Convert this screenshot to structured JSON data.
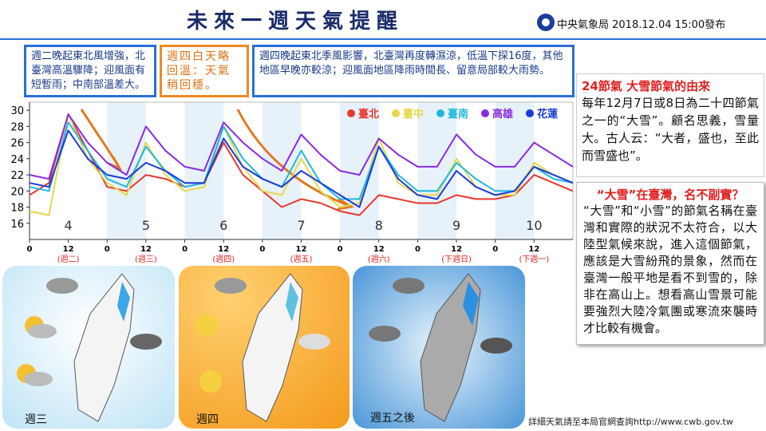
{
  "header": {
    "title": "未來一週天氣提醒",
    "issuer": "中央氣象局 2018.12.04 15:00發布"
  },
  "notes": [
    "週二晚起東北風增強，北臺灣高溫驟降；迎風面有短暫雨；中南部溫差大。",
    "週四白天略回溫：天氣稍回穩。",
    "週四晚起東北季風影響，北臺灣再度轉濕涼，低溫下探16度，其他地區早晚亦較涼；迎風面地區降雨時間長、留意局部較大雨勢。"
  ],
  "chart_data": {
    "type": "line",
    "x": [
      0,
      6,
      12,
      18,
      24,
      30,
      36,
      42,
      48,
      54,
      60,
      66,
      72,
      78,
      84,
      90,
      96,
      102,
      108,
      114,
      120,
      126,
      132,
      138,
      144,
      150,
      156,
      162,
      168
    ],
    "series": [
      {
        "name": "臺北",
        "color": "#e8382f",
        "values": [
          19.5,
          21,
          29.5,
          25,
          20.5,
          20,
          22,
          21.5,
          20.5,
          21,
          26,
          22,
          20,
          18,
          19,
          18.5,
          17.5,
          17,
          19.5,
          19,
          18.5,
          18.5,
          19.5,
          19,
          19,
          19.5,
          22,
          21,
          20
        ]
      },
      {
        "name": "臺中",
        "color": "#e6d84a",
        "values": [
          17.5,
          17,
          29.5,
          24,
          21,
          19.5,
          26,
          22,
          20,
          20.5,
          28,
          23,
          20,
          19.5,
          24,
          20,
          18,
          18.5,
          26.5,
          21,
          19.5,
          19.5,
          24,
          20.5,
          19.5,
          19.5,
          23.5,
          22,
          21
        ]
      },
      {
        "name": "臺南",
        "color": "#20b8e0",
        "values": [
          20.5,
          20,
          28.5,
          25,
          21.5,
          20.5,
          25.5,
          22.5,
          20.5,
          21,
          28,
          24,
          21.5,
          20.5,
          25,
          21,
          19,
          19,
          25.5,
          22,
          20,
          20,
          23.5,
          21.5,
          20,
          20,
          23,
          21.5,
          21
        ]
      },
      {
        "name": "高雄",
        "color": "#8a2be2",
        "values": [
          22,
          21.5,
          29.5,
          26,
          23.5,
          22,
          28,
          25,
          23,
          22.5,
          28.5,
          26,
          24,
          22.5,
          27,
          24.5,
          22.5,
          22,
          26.5,
          24.5,
          23,
          23,
          27,
          24.5,
          23,
          23,
          26,
          24.5,
          23
        ]
      },
      {
        "name": "花蓮",
        "color": "#1c3cd8",
        "values": [
          21,
          20.5,
          27.5,
          24,
          22,
          21.5,
          23.5,
          22.5,
          21,
          21,
          26.5,
          23,
          21.5,
          20.5,
          22.5,
          21,
          19.5,
          18,
          25.5,
          21.5,
          19.5,
          19,
          22.5,
          20.5,
          19.5,
          20,
          23,
          22,
          21
        ]
      }
    ],
    "xlim": [
      0,
      168
    ],
    "xticks": [
      0,
      12,
      {
        "value": 24,
        "label": "0"
      },
      {
        "value": 36,
        "label": "12"
      },
      {
        "value": 48,
        "label": "0"
      },
      {
        "value": 60,
        "label": "12"
      },
      {
        "value": 72,
        "label": "0"
      },
      {
        "value": 84,
        "label": "12"
      },
      {
        "value": 96,
        "label": "0"
      },
      {
        "value": 108,
        "label": "12"
      },
      {
        "value": 120,
        "label": "0"
      },
      {
        "value": 132,
        "label": "12"
      },
      {
        "value": 144,
        "label": "0"
      },
      {
        "value": 156,
        "label": "12"
      }
    ],
    "ylim": [
      14,
      31
    ],
    "yticks": [
      16,
      18,
      20,
      22,
      24,
      26,
      28,
      30
    ],
    "day_labels": [
      "4",
      "5",
      "6",
      "7",
      "8",
      "9",
      "10"
    ],
    "weekday_labels": [
      "(週二)",
      "(週三)",
      "(週四)",
      "(週五)",
      "(週六)",
      "(下週日)",
      "(下週一)"
    ]
  },
  "sidebar": [
    {
      "title": "24節氣 大雪節氣的由來",
      "body": "每年12月7日或8日為二十四節氣之一的“大雪”。顧名思義，雪量大。古人云：“大者，盛也，至此而雪盛也”。"
    },
    {
      "title": "“大雪”在臺灣，名不副實？",
      "body": "“大雪”和“小雪”的節氣名稱在臺灣和實際的狀況不太符合，以大陸型氣候來說，進入這個節氣，應該是大雪紛飛的景象，然而在臺灣一般平地是看不到雪的，除非在高山上。想看高山雪景可能要強烈大陸冷氣團或寒流來襲時才比較有機會。"
    }
  ],
  "maps": [
    {
      "label": "週三"
    },
    {
      "label": "週四"
    },
    {
      "label": "週五之後"
    }
  ],
  "footer": "詳細天氣請至本局官網查詢http://www.cwb.gov.tw"
}
